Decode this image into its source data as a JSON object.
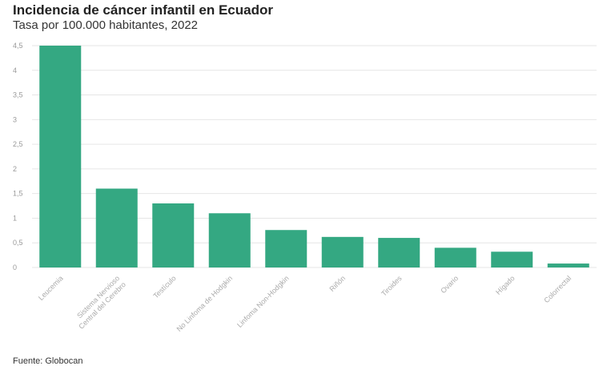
{
  "header": {
    "title": "Incidencia de cáncer infantil en Ecuador",
    "subtitle": "Tasa por 100.000 habitantes, 2022"
  },
  "footer": {
    "source": "Fuente: Globocan"
  },
  "colors": {
    "bar": "#34a882",
    "grid": "#e6e6e6",
    "tick_text": "#999999"
  },
  "chart_data": {
    "type": "bar",
    "title": "Incidencia de cáncer infantil en Ecuador",
    "subtitle": "Tasa por 100.000 habitantes, 2022",
    "xlabel": "",
    "ylabel": "",
    "categories": [
      "Leucemia",
      "Sistema Nervioso Central del Cerebro",
      "Testículo",
      "No Linfoma de Hodgkin",
      "Linfoma Non-Hodgkin",
      "Riñón",
      "Tiroides",
      "Ovario",
      "Hígado",
      "Colorrectal"
    ],
    "values": [
      4.5,
      1.6,
      1.3,
      1.1,
      0.76,
      0.62,
      0.6,
      0.4,
      0.32,
      0.08
    ],
    "ylim": [
      0,
      4.5
    ],
    "yticks": [
      "0",
      "0,5",
      "1",
      "1,5",
      "2",
      "2,5",
      "3",
      "3,5",
      "4",
      "4,5"
    ],
    "grid": true,
    "legend": "none"
  }
}
